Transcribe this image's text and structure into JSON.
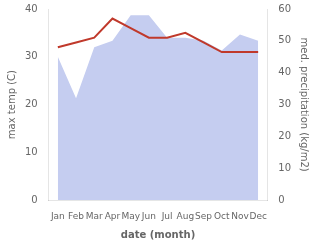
{
  "chart_data": {
    "type": "line",
    "xlabel": "date (month)",
    "ylabel": "max temp (C)",
    "y2label": "med. precipitation (kg/m2)",
    "categories": [
      "Jan",
      "Feb",
      "Mar",
      "Apr",
      "May",
      "Jun",
      "Jul",
      "Aug",
      "Sep",
      "Oct",
      "Nov",
      "Dec"
    ],
    "series": [
      {
        "type": "area",
        "color": "#c5cdf0",
        "axis": "y2",
        "values": [
          45,
          32,
          48,
          50,
          58,
          58,
          51,
          51,
          50,
          47,
          52,
          50
        ]
      },
      {
        "type": "line",
        "color": "#c0392b",
        "values": [
          32,
          33,
          34,
          38,
          36,
          34,
          34,
          35,
          33,
          31,
          31,
          31
        ]
      }
    ],
    "ylim": [
      0,
      40
    ],
    "yticks": [
      0,
      10,
      20,
      30,
      40
    ],
    "y2lim": [
      0,
      60
    ],
    "y2ticks": [
      0,
      10,
      20,
      30,
      40,
      50,
      60
    ],
    "grid": false
  }
}
